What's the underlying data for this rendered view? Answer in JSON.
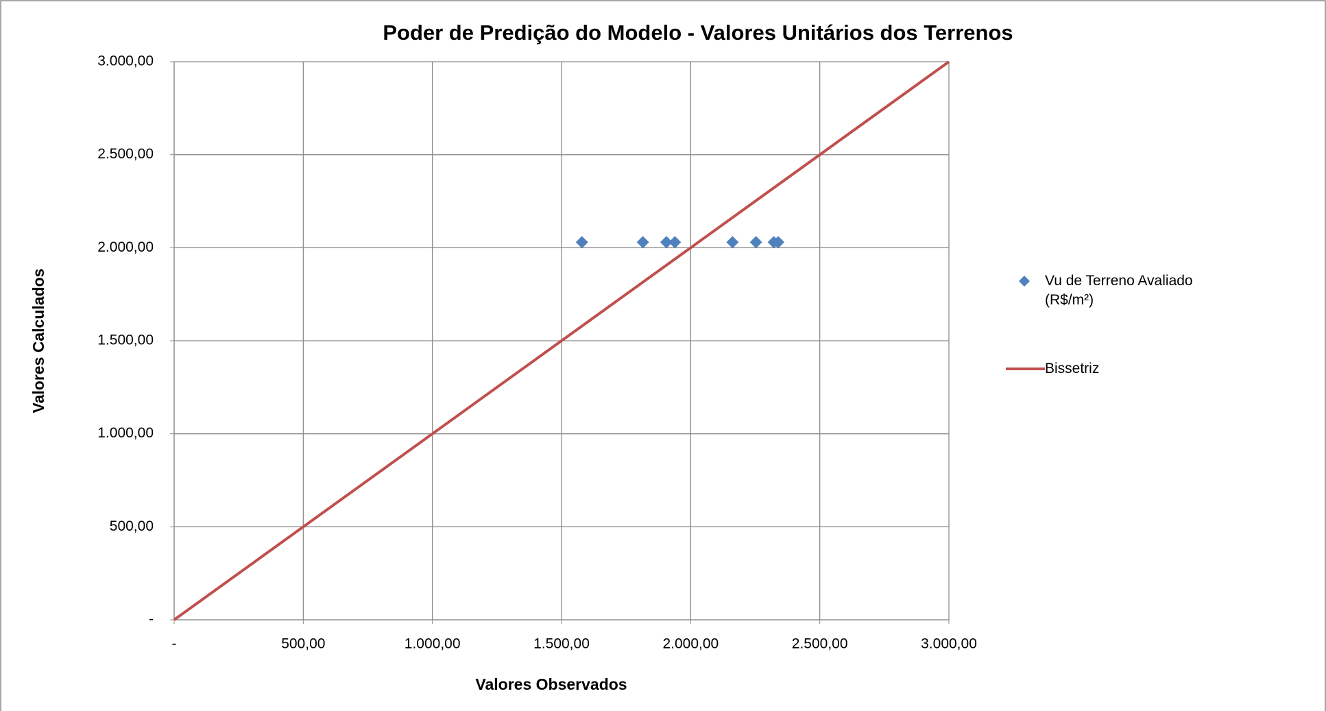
{
  "chart_data": {
    "type": "scatter",
    "title": "Poder de Predição do Modelo - Valores Unitários dos Terrenos",
    "x_label": "Valores Observados",
    "y_label": "Valores Calculados",
    "series": [
      {
        "name": "Vu de Terreno Avaliado (R$/m²)",
        "color": "#4f81bd",
        "kind": "scatter",
        "x": [
          1579,
          1815,
          1906,
          1939,
          2162,
          2253,
          2322,
          2339
        ],
        "values": [
          2030,
          2030,
          2030,
          2030,
          2030,
          2030,
          2030,
          2030
        ]
      },
      {
        "name": "Bissetriz",
        "color": "#c0504d",
        "kind": "line",
        "x": [
          0,
          3000
        ],
        "values": [
          0,
          3000
        ]
      }
    ],
    "xlim": [
      0,
      3000
    ],
    "xticks": [
      {
        "value": 0,
        "label": "-"
      },
      {
        "value": 500,
        "label": "500,00"
      },
      {
        "value": 1000,
        "label": "1.000,00"
      },
      {
        "value": 1500,
        "label": "1.500,00"
      },
      {
        "value": 2000,
        "label": "2.000,00"
      },
      {
        "value": 2500,
        "label": "2.500,00"
      },
      {
        "value": 3000,
        "label": "3.000,00"
      }
    ],
    "ylim": [
      0,
      3000
    ],
    "yticks": [
      {
        "value": 0,
        "label": "-"
      },
      {
        "value": 500,
        "label": "500,00"
      },
      {
        "value": 1000,
        "label": "1.000,00"
      },
      {
        "value": 1500,
        "label": "1.500,00"
      },
      {
        "value": 2000,
        "label": "2.000,00"
      },
      {
        "value": 2500,
        "label": "2.500,00"
      },
      {
        "value": 3000,
        "label": "3.000,00"
      }
    ],
    "grid": true,
    "legend": "right"
  }
}
